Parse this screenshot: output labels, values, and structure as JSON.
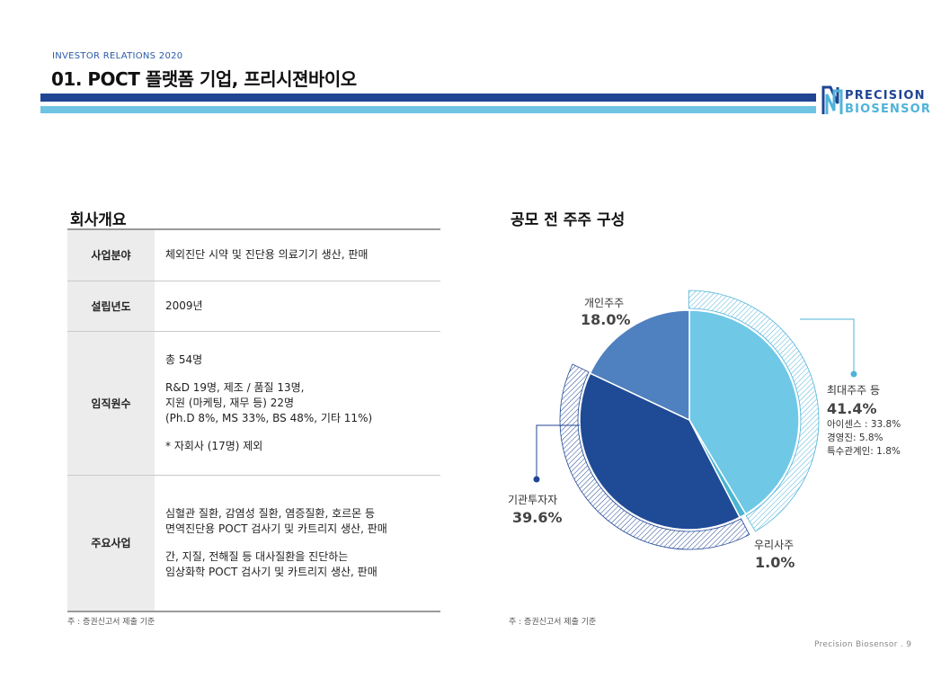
{
  "header": {
    "eyebrow": "INVESTOR RELATIONS 2020",
    "title": "01. POCT 플랫폼 기업, 프리시젼바이오",
    "logo_line1": "PRECISION",
    "logo_line2": "BIOSENSOR"
  },
  "colors": {
    "brand_navy": "#1f4594",
    "brand_sky": "#6fc3e3",
    "slice_largest": "#6fc8e6",
    "slice_institutional": "#1f4a96",
    "slice_individual": "#4f80bf",
    "slice_employee": "#4bb5d2"
  },
  "overview": {
    "title": "회사개요",
    "rows": [
      {
        "label": "사업분야",
        "lines": [
          "체외진단 시약 및 진단용 의료기기 생산, 판매"
        ]
      },
      {
        "label": "설립년도",
        "lines": [
          "2009년"
        ]
      },
      {
        "label": "임직원수",
        "lines": [
          "총 54명",
          "",
          "R&D 19명, 제조 / 품질 13명,",
          "지원 (마케팅, 재무 등) 22명",
          "(Ph.D 8%, MS 33%, BS 48%, 기타 11%)",
          "",
          "* 자회사 (17명) 제외"
        ]
      },
      {
        "label": "주요사업",
        "lines": [
          "심혈관 질환, 감염성 질환, 염증질환, 호르몬 등",
          "면역진단용 POCT 검사기 및 카트리지 생산, 판매",
          "",
          "간, 지질, 전해질 등 대사질환을 진단하는",
          "임상화학 POCT 검사기 및 카트리지 생산, 판매"
        ]
      }
    ],
    "note": "주 : 증권신고서 제출 기준"
  },
  "chart_data": {
    "type": "pie",
    "title": "공모 전 주주 구성",
    "series": [
      {
        "values": [
          41.4,
          1.0,
          39.6,
          18.0
        ],
        "categories": [
          "최대주주 등",
          "우리사주",
          "기관투자자",
          "개인주주"
        ],
        "labels": [
          "41.4%",
          "1.0%",
          "39.6%",
          "18.0%"
        ]
      }
    ],
    "annotations": {
      "largest_breakdown": [
        "아이센스 : 33.8%",
        "경영진: 5.8%",
        "특수관계인: 1.8%"
      ]
    },
    "note": "주 : 증권신고서 제출 기준"
  },
  "footer": {
    "text": "Precision Biosensor .  9"
  }
}
